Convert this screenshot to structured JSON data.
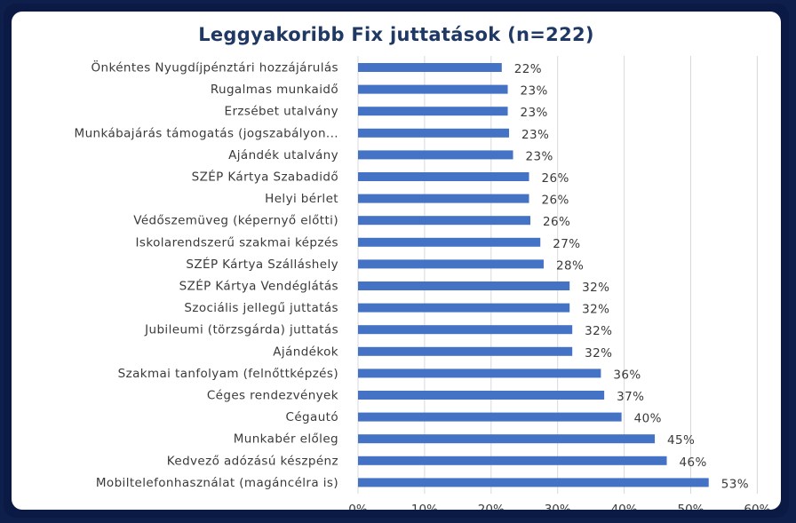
{
  "chart_data": {
    "type": "bar",
    "orientation": "horizontal",
    "title": "Leggyakoribb Fix juttatások (n=222)",
    "categories": [
      "Önkéntes Nyugdíjpénztári hozzájárulás",
      "Rugalmas munkaidő",
      "Erzsébet utalvány",
      "Munkábajárás támogatás (jogszabályon...",
      "Ajándék utalvány",
      "SZÉP Kártya Szabadidő",
      "Helyi bérlet",
      "Védőszemüveg (képernyő előtti)",
      "Iskolarendszerű szakmai képzés",
      "SZÉP Kártya Szálláshely",
      "SZÉP Kártya Vendéglátás",
      "Szociális jellegű juttatás",
      "Jubileumi (törzsgárda) juttatás",
      "Ajándékok",
      "Szakmai tanfolyam (felnőttképzés)",
      "Céges rendezvények",
      "Cégautó",
      "Munkabér előleg",
      "Kedvező adózású készpénz",
      "Mobiltelefonhasználat (magáncélra is)"
    ],
    "values": [
      21.6,
      22.5,
      22.5,
      22.7,
      23.3,
      25.7,
      25.7,
      25.9,
      27.4,
      27.9,
      31.8,
      31.8,
      32.2,
      32.2,
      36.5,
      37.0,
      39.6,
      44.6,
      46.4,
      52.7
    ],
    "value_labels": [
      "22%",
      "23%",
      "23%",
      "23%",
      "23%",
      "26%",
      "26%",
      "26%",
      "27%",
      "28%",
      "32%",
      "32%",
      "32%",
      "32%",
      "36%",
      "37%",
      "40%",
      "45%",
      "46%",
      "53%"
    ],
    "x_ticks": [
      "0%",
      "10%",
      "20%",
      "30%",
      "40%",
      "50%",
      "60%"
    ],
    "xlim": [
      0,
      60
    ],
    "grid": true,
    "bar_color": "#4472c4"
  }
}
